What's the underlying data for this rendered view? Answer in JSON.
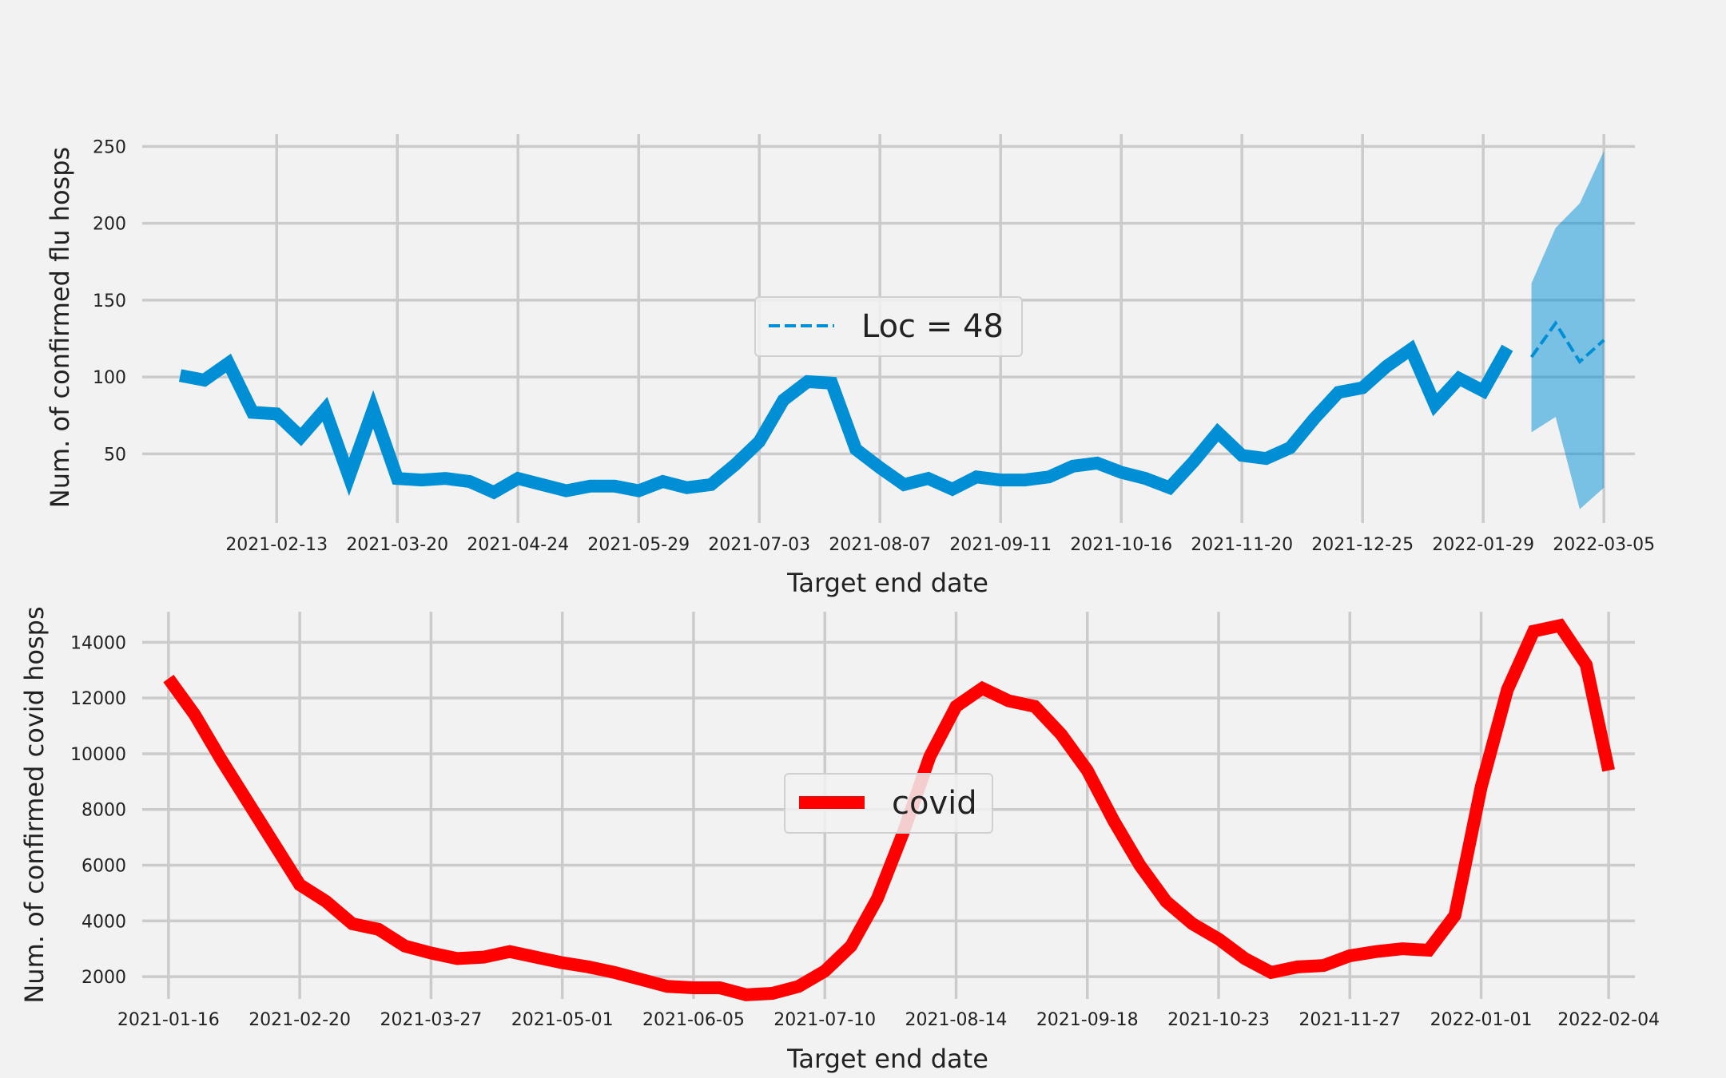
{
  "chart_data": [
    {
      "type": "line",
      "xlabel": "Target end date",
      "ylabel": "Num. of confirmed flu hosps",
      "xlim": [
        "2021-01-05",
        "2022-03-14"
      ],
      "ylim": [
        5,
        258
      ],
      "yticks": [
        50,
        100,
        150,
        200,
        250
      ],
      "xticks": [
        "2021-02-13",
        "2021-03-20",
        "2021-04-24",
        "2021-05-29",
        "2021-07-03",
        "2021-08-07",
        "2021-09-11",
        "2021-10-16",
        "2021-11-20",
        "2021-12-25",
        "2022-01-29",
        "2022-03-05"
      ],
      "grid": true,
      "legend": {
        "location": "center",
        "entries": [
          {
            "label": "Loc = 48",
            "style": "dashed",
            "color": "#008fd5"
          }
        ]
      },
      "series": [
        {
          "style": "solid",
          "color": "#008fd5",
          "x": [
            "2021-01-16",
            "2021-01-23",
            "2021-01-30",
            "2021-02-06",
            "2021-02-13",
            "2021-02-20",
            "2021-02-27",
            "2021-03-06",
            "2021-03-13",
            "2021-03-20",
            "2021-03-27",
            "2021-04-03",
            "2021-04-10",
            "2021-04-17",
            "2021-04-24",
            "2021-05-01",
            "2021-05-08",
            "2021-05-15",
            "2021-05-22",
            "2021-05-29",
            "2021-06-05",
            "2021-06-12",
            "2021-06-19",
            "2021-06-26",
            "2021-07-03",
            "2021-07-10",
            "2021-07-17",
            "2021-07-24",
            "2021-07-31",
            "2021-08-07",
            "2021-08-14",
            "2021-08-21",
            "2021-08-28",
            "2021-09-04",
            "2021-09-11",
            "2021-09-18",
            "2021-09-25",
            "2021-10-02",
            "2021-10-09",
            "2021-10-16",
            "2021-10-23",
            "2021-10-30",
            "2021-11-06",
            "2021-11-13",
            "2021-11-20",
            "2021-11-27",
            "2021-12-04",
            "2021-12-11",
            "2021-12-18",
            "2021-12-25",
            "2022-01-01",
            "2022-01-08",
            "2022-01-15",
            "2022-01-22",
            "2022-01-29",
            "2022-02-05"
          ],
          "y": [
            101,
            98,
            109,
            77,
            76,
            61,
            79,
            35,
            79,
            34,
            33,
            34,
            32,
            25,
            34,
            30,
            26,
            29,
            29,
            26,
            32,
            28,
            30,
            43,
            58,
            85,
            97,
            96,
            53,
            41,
            30,
            34,
            27,
            35,
            33,
            33,
            35,
            42,
            44,
            38,
            34,
            28,
            45,
            64,
            49,
            47,
            54,
            73,
            90,
            93,
            107,
            118,
            82,
            99,
            91,
            119
          ]
        },
        {
          "name": "Loc = 48",
          "style": "dashed",
          "color": "#008fd5",
          "x": [
            "2022-02-12",
            "2022-02-19",
            "2022-02-26",
            "2022-03-05"
          ],
          "y": [
            113,
            135,
            110,
            124
          ]
        }
      ],
      "bands": [
        {
          "color": "#008fd5",
          "opacity": 0.5,
          "x": [
            "2022-02-12",
            "2022-02-19",
            "2022-02-26",
            "2022-03-05"
          ],
          "lower": [
            64,
            74,
            14,
            28
          ],
          "upper": [
            161,
            197,
            213,
            247
          ]
        }
      ]
    },
    {
      "type": "line",
      "xlabel": "Target end date",
      "ylabel": "Num. of confirmed covid hosps",
      "xlim": [
        "2021-01-09",
        "2022-02-11"
      ],
      "ylim": [
        1200,
        15100
      ],
      "yticks": [
        2000,
        4000,
        6000,
        8000,
        10000,
        12000,
        14000
      ],
      "xticks": [
        "2021-01-16",
        "2021-02-20",
        "2021-03-27",
        "2021-05-01",
        "2021-06-05",
        "2021-07-10",
        "2021-08-14",
        "2021-09-18",
        "2021-10-23",
        "2021-11-27",
        "2022-01-01",
        "2022-02-04"
      ],
      "grid": true,
      "legend": {
        "location": "center",
        "entries": [
          {
            "label": "covid",
            "style": "solid",
            "color": "#ff0000"
          }
        ]
      },
      "series": [
        {
          "name": "covid",
          "style": "solid",
          "color": "#ff0000",
          "x": [
            "2021-01-16",
            "2021-01-23",
            "2021-01-30",
            "2021-02-06",
            "2021-02-13",
            "2021-02-20",
            "2021-02-27",
            "2021-03-06",
            "2021-03-13",
            "2021-03-20",
            "2021-03-27",
            "2021-04-03",
            "2021-04-10",
            "2021-04-17",
            "2021-04-24",
            "2021-05-01",
            "2021-05-08",
            "2021-05-15",
            "2021-05-22",
            "2021-05-29",
            "2021-06-05",
            "2021-06-12",
            "2021-06-19",
            "2021-06-26",
            "2021-07-03",
            "2021-07-10",
            "2021-07-17",
            "2021-07-24",
            "2021-07-31",
            "2021-08-07",
            "2021-08-14",
            "2021-08-21",
            "2021-08-28",
            "2021-09-04",
            "2021-09-11",
            "2021-09-18",
            "2021-09-25",
            "2021-10-02",
            "2021-10-09",
            "2021-10-16",
            "2021-10-23",
            "2021-10-30",
            "2021-11-06",
            "2021-11-13",
            "2021-11-20",
            "2021-11-27",
            "2021-12-04",
            "2021-12-11",
            "2021-12-18",
            "2021-12-25",
            "2022-01-01",
            "2022-01-08",
            "2022-01-15",
            "2022-01-22",
            "2022-01-29",
            "2022-02-04"
          ],
          "y": [
            12700,
            11400,
            9800,
            8300,
            6800,
            5300,
            4700,
            3900,
            3700,
            3100,
            2850,
            2650,
            2700,
            2900,
            2700,
            2500,
            2350,
            2150,
            1900,
            1650,
            1600,
            1600,
            1350,
            1400,
            1650,
            2200,
            3100,
            4800,
            7200,
            9900,
            11700,
            12350,
            11900,
            11700,
            10700,
            9400,
            7600,
            6000,
            4700,
            3900,
            3350,
            2650,
            2150,
            2350,
            2400,
            2750,
            2900,
            3000,
            2950,
            4200,
            8800,
            12300,
            14400,
            14600,
            13200,
            9400
          ]
        }
      ]
    }
  ]
}
